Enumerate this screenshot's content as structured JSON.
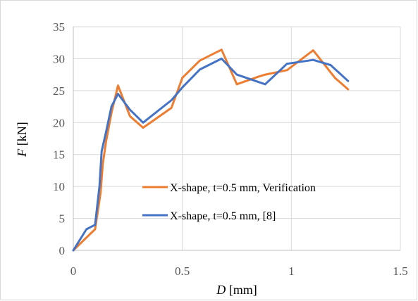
{
  "chart_data": {
    "type": "line",
    "title": "",
    "xlabel_var": "D",
    "xlabel_unit": " [mm]",
    "ylabel_var": "F",
    "ylabel_unit": " [kN]",
    "xlim": [
      0,
      1.5
    ],
    "ylim": [
      0,
      35
    ],
    "xticks": [
      0,
      0.5,
      1,
      1.5
    ],
    "xtick_labels": [
      "0",
      "0.5",
      "1",
      "1.5"
    ],
    "yticks": [
      0,
      5,
      10,
      15,
      20,
      25,
      30,
      35
    ],
    "ytick_labels": [
      "0",
      "5",
      "10",
      "15",
      "20",
      "25",
      "30",
      "35"
    ],
    "grid": true,
    "legend_position": "bottom-right inside",
    "series": [
      {
        "name": "X-shape, t=0.5 mm, Verification",
        "color": "#ED7D31",
        "x": [
          0,
          0.06,
          0.1,
          0.125,
          0.135,
          0.15,
          0.175,
          0.205,
          0.26,
          0.32,
          0.45,
          0.5,
          0.58,
          0.68,
          0.75,
          0.85,
          0.88,
          0.98,
          1.1,
          1.2,
          1.26
        ],
        "y": [
          0,
          2.0,
          3.3,
          9.0,
          13.5,
          17.0,
          21.5,
          25.8,
          21.0,
          19.2,
          22.3,
          27.0,
          29.7,
          31.4,
          26.0,
          27.2,
          27.5,
          28.2,
          31.3,
          27.0,
          25.2
        ]
      },
      {
        "name": "X-shape, t=0.5 mm, [8]",
        "color": "#4472C4",
        "x": [
          0,
          0.06,
          0.1,
          0.12,
          0.13,
          0.15,
          0.175,
          0.205,
          0.26,
          0.32,
          0.45,
          0.5,
          0.58,
          0.68,
          0.75,
          0.88,
          0.98,
          1.1,
          1.18,
          1.26
        ],
        "y": [
          0,
          3.3,
          4.0,
          10.0,
          15.5,
          18.5,
          22.5,
          24.5,
          22.0,
          20.0,
          23.5,
          25.5,
          28.3,
          30.0,
          27.5,
          26.0,
          29.2,
          29.8,
          29.0,
          26.5
        ]
      }
    ]
  },
  "style": {
    "grid_color": "#d9d9d9",
    "axis_color": "#bfbfbf",
    "line_width": 3
  }
}
